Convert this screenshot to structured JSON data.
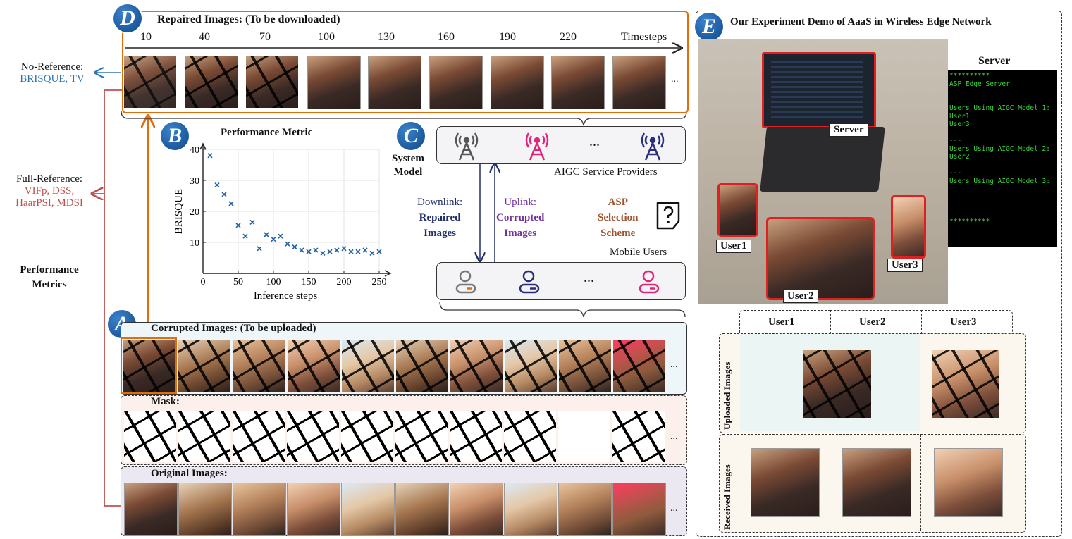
{
  "panel_d": {
    "badge": "D",
    "title": "Repaired Images: (To be downloaded)",
    "timesteps": [
      "10",
      "40",
      "70",
      "100",
      "130",
      "160",
      "190",
      "220"
    ],
    "axis_label": "Timesteps",
    "ellipsis": "..."
  },
  "panel_b": {
    "badge": "B",
    "title": "Performance Metric"
  },
  "panel_c": {
    "badge": "C",
    "system": "System",
    "model": "Model",
    "providers": "AIGC Service Providers",
    "dots": "...",
    "downlink": "Downlink:",
    "downlink_val1": "Repaired",
    "downlink_val2": "Images",
    "uplink": "Uplink:",
    "uplink_val1": "Corrupted",
    "uplink_val2": "Images",
    "asp1": "ASP",
    "asp2": "Selection",
    "asp3": "Scheme",
    "mobile": "Mobile Users",
    "dots2": "..."
  },
  "panel_a": {
    "badge": "A",
    "corrupted_title": "Corrupted Images: (To be uploaded)",
    "mask_title": "Mask:",
    "original_title": "Original Images:",
    "ellipsis": "..."
  },
  "panel_e": {
    "badge": "E",
    "title": "Our Experiment Demo of AaaS in Wireless Edge Network",
    "server_label": "Server",
    "server_tag": "Server",
    "user1": "User1",
    "user2": "User2",
    "user3": "User3",
    "col1": "User1",
    "col2": "User2",
    "col3": "User3",
    "row1": "Uploaded Images",
    "row2": "Received Images",
    "terminal": [
      "**********",
      "ASP Edge Server",
      "",
      "",
      "Users Using AIGC Model 1:",
      "User1",
      "User3",
      "",
      "---",
      "Users Using AIGC Model 2:",
      "User2",
      "",
      "---",
      "Users Using AIGC Model 3:",
      "",
      "",
      "",
      "",
      "**********"
    ]
  },
  "left": {
    "noref_title": "No-Reference:",
    "noref_val": "BRISQUE, TV",
    "fullref_title": "Full-Reference:",
    "fullref_val1": "VIFp, DSS,",
    "fullref_val2": "HaarPSI, MDSI",
    "perf1": "Performance",
    "perf2": "Metrics"
  },
  "chart_data": {
    "type": "scatter",
    "title": "Performance Metric",
    "xlabel": "Inference steps",
    "ylabel": "BRISQUE",
    "xlim": [
      0,
      250
    ],
    "ylim": [
      0,
      40
    ],
    "xticks": [
      "0",
      "50",
      "100",
      "150",
      "200",
      "250"
    ],
    "yticks": [
      "10",
      "20",
      "30",
      "40"
    ],
    "x": [
      10,
      20,
      30,
      40,
      50,
      60,
      70,
      80,
      90,
      100,
      110,
      120,
      130,
      140,
      150,
      160,
      170,
      180,
      190,
      200,
      210,
      220,
      230,
      240,
      250
    ],
    "y": [
      38,
      28.5,
      25.5,
      22.5,
      15.5,
      12,
      16.5,
      8,
      12.5,
      11,
      12,
      9.5,
      8.5,
      7.5,
      7,
      7.5,
      6.5,
      7,
      7.5,
      8,
      7,
      7,
      7.5,
      6.5,
      7
    ],
    "marker": "x",
    "color": "#1f5fa5",
    "grid": true
  },
  "colors": {
    "orange": "#e46c0a",
    "brown": "#c0504d",
    "blue": "#2e75b6",
    "navy": "#1f2d6b",
    "purple": "#7030a0",
    "asp": "#a0522d",
    "red": "#e02020",
    "green": "#3ad43a"
  }
}
